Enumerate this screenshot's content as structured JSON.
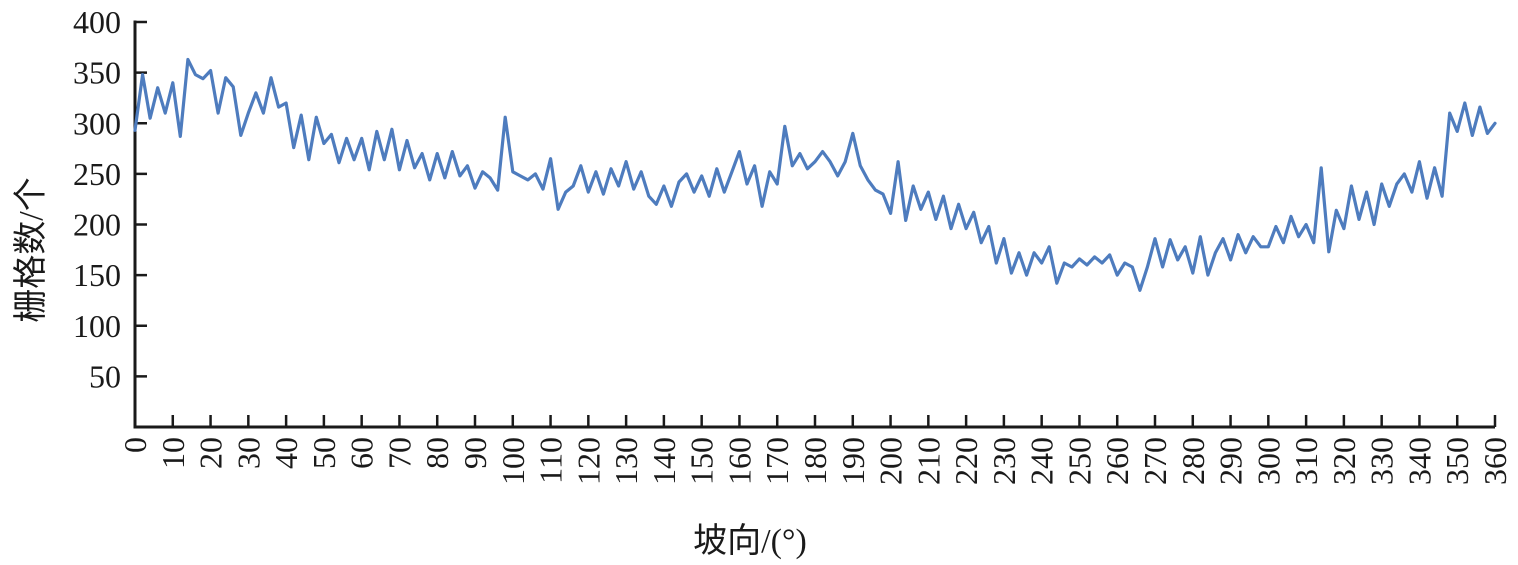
{
  "page": {
    "background": "#ffffff"
  },
  "chart_data": {
    "type": "line",
    "title": "",
    "xlabel": "坡向/(°)",
    "ylabel": "栅格数/个",
    "xlim": [
      0,
      360
    ],
    "ylim": [
      0,
      400
    ],
    "x_ticks": [
      0,
      10,
      20,
      30,
      40,
      50,
      60,
      70,
      80,
      90,
      100,
      110,
      120,
      130,
      140,
      150,
      160,
      170,
      180,
      190,
      200,
      210,
      220,
      230,
      240,
      250,
      260,
      270,
      280,
      290,
      300,
      310,
      320,
      330,
      340,
      350,
      360
    ],
    "y_ticks": [
      50,
      100,
      150,
      200,
      250,
      300,
      350,
      400
    ],
    "grid": false,
    "legend": "none",
    "axis_color": "#1a1a1a",
    "tick_label_color": "#1a1a1a",
    "series": [
      {
        "color": "#4E7CBE",
        "x_start": 0,
        "x_step": 2,
        "values": [
          293,
          348,
          305,
          335,
          310,
          340,
          287,
          363,
          348,
          344,
          352,
          310,
          345,
          336,
          288,
          310,
          330,
          310,
          345,
          316,
          320,
          276,
          308,
          264,
          306,
          280,
          289,
          261,
          285,
          264,
          285,
          254,
          292,
          264,
          294,
          254,
          283,
          256,
          270,
          244,
          270,
          246,
          272,
          248,
          258,
          236,
          252,
          246,
          234,
          306,
          252,
          248,
          244,
          250,
          235,
          265,
          215,
          232,
          238,
          258,
          232,
          252,
          230,
          255,
          238,
          262,
          235,
          252,
          228,
          220,
          238,
          218,
          242,
          250,
          232,
          248,
          228,
          255,
          232,
          252,
          272,
          240,
          258,
          218,
          252,
          240,
          297,
          258,
          270,
          255,
          262,
          272,
          262,
          248,
          262,
          290,
          258,
          244,
          234,
          230,
          211,
          262,
          204,
          238,
          215,
          232,
          205,
          228,
          196,
          220,
          196,
          212,
          182,
          198,
          162,
          186,
          152,
          172,
          150,
          172,
          162,
          178,
          142,
          162,
          158,
          166,
          160,
          168,
          162,
          170,
          150,
          162,
          158,
          135,
          158,
          186,
          158,
          185,
          165,
          178,
          152,
          188,
          150,
          172,
          186,
          165,
          190,
          172,
          188,
          178,
          178,
          198,
          182,
          208,
          188,
          200,
          182,
          256,
          173,
          214,
          196,
          238,
          205,
          232,
          200,
          240,
          218,
          240,
          250,
          232,
          262,
          226,
          256,
          228,
          310,
          292,
          320,
          288,
          316,
          290,
          300
        ]
      }
    ]
  }
}
